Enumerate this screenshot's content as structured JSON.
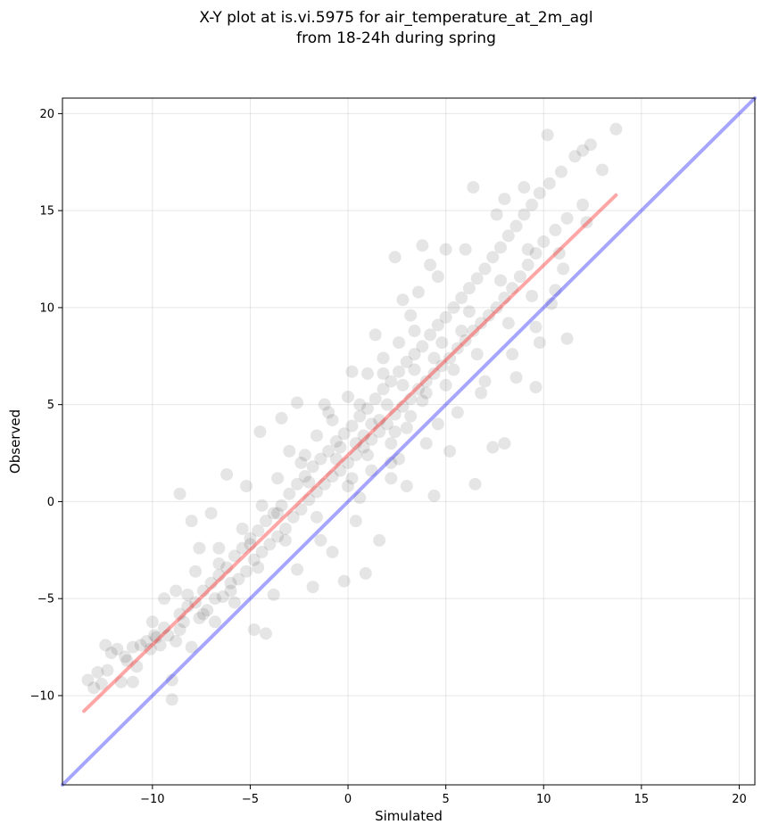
{
  "chart_data": {
    "type": "scatter",
    "title_lines": [
      "X-Y plot at is.vi.5975 for air_temperature_at_2m_agl",
      "from 18-24h during spring"
    ],
    "xlabel": "Simulated",
    "ylabel": "Observed",
    "xlim": [
      -14.6,
      20.8
    ],
    "ylim": [
      -14.6,
      20.8
    ],
    "xticks": [
      -10,
      -5,
      0,
      5,
      10,
      15,
      20
    ],
    "yticks": [
      -10,
      -5,
      0,
      5,
      10,
      15,
      20
    ],
    "grid": true,
    "point_color": "#000000",
    "point_alpha": 0.1,
    "identity_line": {
      "color": "#0000ff",
      "alpha": 0.35,
      "from": -14.6,
      "to": 20.8
    },
    "regression_line": {
      "color": "#ff0000",
      "alpha": 0.35,
      "x": [
        -13.5,
        13.7
      ],
      "y": [
        -10.8,
        15.8
      ]
    },
    "points": [
      [
        -13.3,
        -9.2
      ],
      [
        -13.0,
        -9.6
      ],
      [
        -12.6,
        -9.4
      ],
      [
        -12.3,
        -8.7
      ],
      [
        -12.1,
        -7.8
      ],
      [
        -11.8,
        -7.6
      ],
      [
        -11.6,
        -9.3
      ],
      [
        -11.3,
        -8.2
      ],
      [
        -11.0,
        -7.5
      ],
      [
        -10.8,
        -8.5
      ],
      [
        -10.6,
        -7.4
      ],
      [
        -10.3,
        -7.2
      ],
      [
        -10.1,
        -7.6
      ],
      [
        -9.9,
        -6.9
      ],
      [
        -9.6,
        -7.4
      ],
      [
        -9.4,
        -6.5
      ],
      [
        -9.2,
        -6.9
      ],
      [
        -9.0,
        -9.2
      ],
      [
        -8.8,
        -7.2
      ],
      [
        -8.6,
        -5.8
      ],
      [
        -8.4,
        -6.2
      ],
      [
        -8.2,
        -5.4
      ],
      [
        -8.0,
        -7.5
      ],
      [
        -7.8,
        -5.2
      ],
      [
        -7.6,
        -6.0
      ],
      [
        -7.4,
        -4.6
      ],
      [
        -7.2,
        -5.6
      ],
      [
        -7.0,
        -4.2
      ],
      [
        -6.8,
        -5.0
      ],
      [
        -6.6,
        -3.8
      ],
      [
        -6.4,
        -4.9
      ],
      [
        -6.2,
        -3.4
      ],
      [
        -6.0,
        -4.2
      ],
      [
        -5.8,
        -2.8
      ],
      [
        -5.6,
        -4.0
      ],
      [
        -5.4,
        -2.4
      ],
      [
        -5.2,
        -3.6
      ],
      [
        -5.0,
        -1.9
      ],
      [
        -4.8,
        -3.0
      ],
      [
        -4.6,
        -1.5
      ],
      [
        -4.4,
        -2.6
      ],
      [
        -4.2,
        -1.0
      ],
      [
        -4.0,
        -2.2
      ],
      [
        -3.8,
        -0.6
      ],
      [
        -3.6,
        -1.8
      ],
      [
        -3.4,
        -0.2
      ],
      [
        -3.2,
        -1.4
      ],
      [
        -3.0,
        0.4
      ],
      [
        -2.8,
        -0.8
      ],
      [
        -2.6,
        0.9
      ],
      [
        -2.4,
        -0.4
      ],
      [
        -2.2,
        1.3
      ],
      [
        -2.0,
        0.1
      ],
      [
        -1.8,
        1.8
      ],
      [
        -1.6,
        0.5
      ],
      [
        -1.4,
        2.2
      ],
      [
        -1.2,
        0.9
      ],
      [
        -1.0,
        2.6
      ],
      [
        -0.8,
        1.3
      ],
      [
        -0.6,
        3.1
      ],
      [
        -0.4,
        1.6
      ],
      [
        -0.2,
        3.5
      ],
      [
        0.0,
        2.0
      ],
      [
        0.2,
        3.9
      ],
      [
        0.4,
        2.4
      ],
      [
        0.6,
        4.4
      ],
      [
        0.8,
        2.8
      ],
      [
        1.0,
        4.8
      ],
      [
        1.2,
        3.2
      ],
      [
        1.4,
        5.3
      ],
      [
        1.6,
        3.6
      ],
      [
        1.8,
        5.8
      ],
      [
        2.0,
        4.0
      ],
      [
        2.2,
        6.2
      ],
      [
        2.4,
        4.5
      ],
      [
        2.6,
        6.7
      ],
      [
        2.8,
        4.9
      ],
      [
        3.0,
        7.2
      ],
      [
        3.2,
        5.3
      ],
      [
        3.4,
        7.6
      ],
      [
        3.6,
        5.8
      ],
      [
        3.8,
        8.0
      ],
      [
        4.0,
        6.2
      ],
      [
        4.2,
        8.6
      ],
      [
        4.4,
        6.6
      ],
      [
        4.6,
        9.1
      ],
      [
        4.8,
        7.0
      ],
      [
        5.0,
        9.5
      ],
      [
        5.2,
        7.4
      ],
      [
        5.4,
        10.0
      ],
      [
        5.6,
        7.9
      ],
      [
        5.8,
        10.5
      ],
      [
        6.0,
        8.3
      ],
      [
        6.2,
        11.0
      ],
      [
        6.4,
        8.8
      ],
      [
        6.6,
        11.5
      ],
      [
        6.8,
        9.2
      ],
      [
        7.0,
        12.0
      ],
      [
        7.2,
        9.6
      ],
      [
        7.4,
        12.6
      ],
      [
        7.6,
        10.0
      ],
      [
        7.8,
        13.1
      ],
      [
        8.0,
        10.5
      ],
      [
        8.2,
        13.7
      ],
      [
        8.4,
        11.0
      ],
      [
        8.6,
        14.2
      ],
      [
        8.8,
        11.6
      ],
      [
        9.0,
        14.8
      ],
      [
        9.2,
        12.2
      ],
      [
        9.4,
        15.3
      ],
      [
        9.6,
        12.8
      ],
      [
        9.8,
        15.9
      ],
      [
        10.0,
        13.4
      ],
      [
        10.3,
        16.4
      ],
      [
        10.6,
        14.0
      ],
      [
        10.9,
        17.0
      ],
      [
        11.2,
        14.6
      ],
      [
        11.6,
        17.8
      ],
      [
        12.0,
        15.3
      ],
      [
        12.4,
        18.4
      ],
      [
        13.0,
        17.1
      ],
      [
        13.7,
        19.2
      ],
      [
        6.5,
        0.9
      ],
      [
        8.0,
        3.0
      ],
      [
        9.6,
        5.9
      ],
      [
        11.2,
        8.4
      ],
      [
        -8.6,
        0.4
      ],
      [
        -8.0,
        -1.0
      ],
      [
        -2.6,
        5.1
      ],
      [
        -4.5,
        3.6
      ],
      [
        0.9,
        -3.7
      ],
      [
        -0.2,
        -4.1
      ],
      [
        6.4,
        16.2
      ],
      [
        12.0,
        18.1
      ],
      [
        -9.0,
        -10.2
      ],
      [
        5.2,
        2.6
      ],
      [
        4.4,
        0.3
      ],
      [
        7.4,
        2.8
      ],
      [
        10.6,
        10.9
      ],
      [
        2.4,
        12.6
      ],
      [
        3.8,
        13.2
      ],
      [
        -6.2,
        1.4
      ],
      [
        -1.8,
        -4.4
      ],
      [
        1.6,
        -2.0
      ],
      [
        3.0,
        0.8
      ],
      [
        -3.4,
        4.3
      ],
      [
        -5.8,
        -5.2
      ],
      [
        -4.8,
        -6.6
      ],
      [
        -4.2,
        -6.8
      ],
      [
        -2.6,
        -3.5
      ],
      [
        -0.8,
        -2.6
      ],
      [
        0.4,
        -1.0
      ],
      [
        2.2,
        1.2
      ],
      [
        4.0,
        3.0
      ],
      [
        5.6,
        4.6
      ],
      [
        7.0,
        6.2
      ],
      [
        8.4,
        7.6
      ],
      [
        9.6,
        9.0
      ],
      [
        10.4,
        10.2
      ],
      [
        -11.0,
        -9.3
      ],
      [
        -7.0,
        -0.6
      ],
      [
        -5.2,
        0.8
      ],
      [
        -3.0,
        2.6
      ],
      [
        -1.0,
        4.6
      ],
      [
        1.0,
        6.6
      ],
      [
        3.2,
        9.6
      ],
      [
        4.6,
        11.6
      ],
      [
        6.0,
        13.0
      ],
      [
        7.6,
        14.8
      ],
      [
        9.0,
        16.2
      ],
      [
        10.2,
        18.9
      ],
      [
        -12.4,
        -7.4
      ],
      [
        -10.0,
        -6.2
      ],
      [
        -8.2,
        -4.8
      ],
      [
        -6.6,
        -3.2
      ],
      [
        -5.0,
        -2.2
      ],
      [
        -3.6,
        -0.6
      ],
      [
        -2.0,
        1.0
      ],
      [
        -0.6,
        2.2
      ],
      [
        0.8,
        3.4
      ],
      [
        2.0,
        5.0
      ],
      [
        3.4,
        6.8
      ],
      [
        4.8,
        8.2
      ],
      [
        6.2,
        9.8
      ],
      [
        7.8,
        11.4
      ],
      [
        9.2,
        13.0
      ],
      [
        0.2,
        6.7
      ],
      [
        1.8,
        7.4
      ],
      [
        -1.2,
        5.0
      ],
      [
        2.8,
        10.4
      ],
      [
        4.2,
        12.2
      ],
      [
        -7.6,
        -2.4
      ],
      [
        -9.4,
        -5.0
      ],
      [
        -6.8,
        -6.2
      ],
      [
        -3.8,
        -4.8
      ],
      [
        -1.4,
        -2.0
      ],
      [
        0.6,
        0.2
      ],
      [
        2.6,
        2.2
      ],
      [
        4.6,
        4.0
      ],
      [
        6.8,
        5.6
      ],
      [
        8.6,
        6.4
      ],
      [
        9.8,
        8.2
      ],
      [
        11.0,
        12.0
      ],
      [
        12.2,
        14.4
      ],
      [
        -4.4,
        -0.2
      ],
      [
        -2.2,
        2.4
      ],
      [
        0.0,
        5.4
      ],
      [
        1.4,
        8.6
      ],
      [
        3.6,
        10.8
      ],
      [
        5.0,
        13.0
      ],
      [
        8.0,
        15.6
      ],
      [
        -12.8,
        -8.8
      ],
      [
        -11.4,
        -8.0
      ],
      [
        -9.8,
        -7.0
      ],
      [
        -8.6,
        -6.6
      ],
      [
        -7.4,
        -5.8
      ],
      [
        -6.0,
        -4.6
      ],
      [
        -4.6,
        -3.4
      ],
      [
        -3.2,
        -2.0
      ],
      [
        -1.6,
        -0.8
      ],
      [
        0.0,
        0.8
      ],
      [
        1.2,
        1.6
      ],
      [
        2.4,
        3.6
      ],
      [
        3.8,
        5.2
      ],
      [
        5.4,
        6.8
      ],
      [
        6.6,
        7.6
      ],
      [
        8.2,
        9.2
      ],
      [
        9.4,
        10.6
      ],
      [
        10.8,
        12.8
      ],
      [
        0.4,
        3.0
      ],
      [
        1.0,
        2.4
      ],
      [
        1.6,
        4.2
      ],
      [
        2.2,
        3.0
      ],
      [
        2.8,
        6.0
      ],
      [
        3.2,
        4.4
      ],
      [
        -0.4,
        2.8
      ],
      [
        0.6,
        5.0
      ],
      [
        1.8,
        6.6
      ],
      [
        2.6,
        8.2
      ],
      [
        3.4,
        8.8
      ],
      [
        4.4,
        7.4
      ],
      [
        -1.6,
        3.4
      ],
      [
        -0.8,
        4.2
      ],
      [
        0.2,
        1.2
      ],
      [
        1.2,
        4.0
      ],
      [
        2.2,
        2.0
      ],
      [
        3.0,
        3.8
      ],
      [
        4.0,
        5.6
      ],
      [
        5.0,
        6.0
      ],
      [
        5.8,
        8.8
      ],
      [
        -2.4,
        2.0
      ],
      [
        -3.6,
        1.2
      ],
      [
        -5.4,
        -1.4
      ],
      [
        -6.6,
        -2.4
      ],
      [
        -7.8,
        -3.6
      ],
      [
        -8.8,
        -4.6
      ]
    ]
  }
}
